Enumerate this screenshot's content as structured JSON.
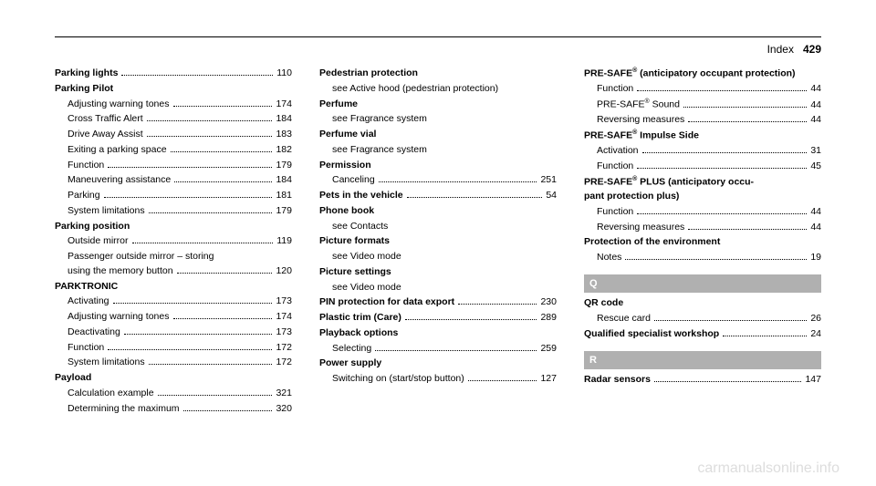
{
  "header": {
    "label": "Index",
    "page": "429"
  },
  "col1": [
    {
      "type": "main-page",
      "label": "Parking lights",
      "page": "110"
    },
    {
      "type": "main",
      "label": "Parking Pilot"
    },
    {
      "type": "sub",
      "label": "Adjusting warning tones",
      "page": "174"
    },
    {
      "type": "sub",
      "label": "Cross Traffic Alert",
      "page": "184"
    },
    {
      "type": "sub",
      "label": "Drive Away Assist",
      "page": "183"
    },
    {
      "type": "sub",
      "label": "Exiting a parking space",
      "page": "182"
    },
    {
      "type": "sub",
      "label": "Function",
      "page": "179"
    },
    {
      "type": "sub",
      "label": "Maneuvering assistance",
      "page": "184"
    },
    {
      "type": "sub",
      "label": "Parking",
      "page": "181"
    },
    {
      "type": "sub",
      "label": "System limitations",
      "page": "179"
    },
    {
      "type": "main",
      "label": "Parking position"
    },
    {
      "type": "sub",
      "label": "Outside mirror",
      "page": "119"
    },
    {
      "type": "sub-multiline",
      "line1": "Passenger outside mirror – storing",
      "line2": "using the memory button",
      "page": "120"
    },
    {
      "type": "main",
      "label": "PARKTRONIC"
    },
    {
      "type": "sub",
      "label": "Activating",
      "page": "173"
    },
    {
      "type": "sub",
      "label": "Adjusting warning tones",
      "page": "174"
    },
    {
      "type": "sub",
      "label": "Deactivating",
      "page": "173"
    },
    {
      "type": "sub",
      "label": "Function",
      "page": "172"
    },
    {
      "type": "sub",
      "label": "System limitations",
      "page": "172"
    },
    {
      "type": "main",
      "label": "Payload"
    },
    {
      "type": "sub",
      "label": "Calculation example",
      "page": "321"
    },
    {
      "type": "sub",
      "label": "Determining the maximum",
      "page": "320"
    }
  ],
  "col2": [
    {
      "type": "main",
      "label": "Pedestrian protection"
    },
    {
      "type": "see",
      "label": "see Active hood (pedestrian protection)"
    },
    {
      "type": "main",
      "label": "Perfume"
    },
    {
      "type": "see",
      "label": "see Fragrance system"
    },
    {
      "type": "main",
      "label": "Perfume vial"
    },
    {
      "type": "see",
      "label": "see Fragrance system"
    },
    {
      "type": "main",
      "label": "Permission"
    },
    {
      "type": "sub",
      "label": "Canceling",
      "page": "251"
    },
    {
      "type": "main-page",
      "label": "Pets in the vehicle",
      "page": "54"
    },
    {
      "type": "main",
      "label": "Phone book"
    },
    {
      "type": "see",
      "label": "see Contacts"
    },
    {
      "type": "main",
      "label": "Picture formats"
    },
    {
      "type": "see",
      "label": "see Video mode"
    },
    {
      "type": "main",
      "label": "Picture settings"
    },
    {
      "type": "see",
      "label": "see Video mode"
    },
    {
      "type": "main-page",
      "label": "PIN protection for data export",
      "page": "230"
    },
    {
      "type": "main-page",
      "label": "Plastic trim (Care)",
      "page": "289"
    },
    {
      "type": "main",
      "label": "Playback options"
    },
    {
      "type": "sub",
      "label": "Selecting",
      "page": "259"
    },
    {
      "type": "main",
      "label": "Power supply"
    },
    {
      "type": "sub",
      "label": "Switching on (start/stop button)",
      "page": "127"
    }
  ],
  "col3": [
    {
      "type": "main-html",
      "html": "PRE-SAFE<sup>®</sup> (anticipatory occupant protection)"
    },
    {
      "type": "sub",
      "label": "Function",
      "page": "44"
    },
    {
      "type": "sub-html",
      "html": "PRE-SAFE<sup>®</sup> Sound",
      "page": "44"
    },
    {
      "type": "sub",
      "label": "Reversing measures",
      "page": "44"
    },
    {
      "type": "main-html",
      "html": "PRE-SAFE<sup>®</sup> Impulse Side"
    },
    {
      "type": "sub",
      "label": "Activation",
      "page": "31"
    },
    {
      "type": "sub",
      "label": "Function",
      "page": "45"
    },
    {
      "type": "main-html",
      "html": "PRE-SAFE<sup>®</sup> PLUS (anticipatory occu-<br>pant protection plus)"
    },
    {
      "type": "sub",
      "label": "Function",
      "page": "44"
    },
    {
      "type": "sub",
      "label": "Reversing measures",
      "page": "44"
    },
    {
      "type": "main",
      "label": "Protection of the environment"
    },
    {
      "type": "sub",
      "label": "Notes",
      "page": "19"
    },
    {
      "type": "letter",
      "label": "Q"
    },
    {
      "type": "main",
      "label": "QR code"
    },
    {
      "type": "sub",
      "label": "Rescue card",
      "page": "26"
    },
    {
      "type": "main-page",
      "label": "Qualified specialist workshop",
      "page": "24"
    },
    {
      "type": "letter",
      "label": "R"
    },
    {
      "type": "main-page",
      "label": "Radar sensors",
      "page": "147"
    }
  ],
  "watermark": "carmanualsonline.info"
}
